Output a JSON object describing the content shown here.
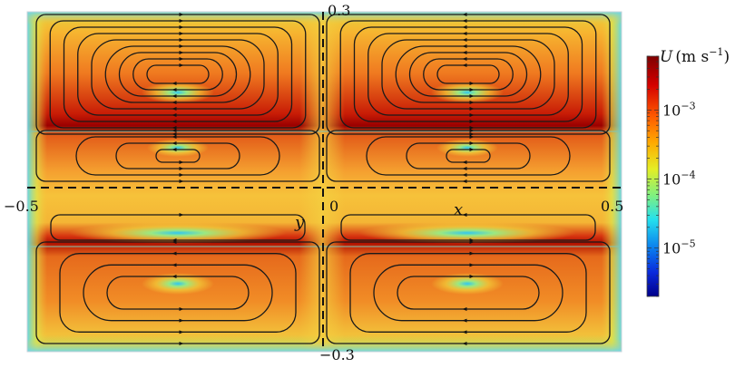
{
  "figure": {
    "x_axis": {
      "symbol": "x",
      "min_label": "−0.5",
      "origin_label": "0",
      "max_label": "0.5"
    },
    "y_axis": {
      "symbol": "y",
      "max_label": "0.3",
      "min_label": "−0.3"
    },
    "colorbar": {
      "symbol": "U",
      "unit_text": "(m s",
      "unit_exp": "−1",
      "unit_close": ")",
      "ticks": [
        {
          "base": "10",
          "exp": "−3",
          "value": 0.001
        },
        {
          "base": "10",
          "exp": "−4",
          "value": 0.0001
        },
        {
          "base": "10",
          "exp": "−5",
          "value": 1e-05
        }
      ],
      "scale": "log",
      "range": [
        2e-06,
        0.006
      ],
      "colors": [
        "#7f0000",
        "#d40000",
        "#ff5a00",
        "#ffaa00",
        "#e4ee25",
        "#7ff080",
        "#24e0ee",
        "#0a7dee",
        "#0a2adc",
        "#00008a"
      ]
    },
    "field_colors": {
      "high": "#b00000",
      "mid": "#f26a1a",
      "low": "#f7cf40",
      "lowest": "#3cc4f0"
    }
  }
}
